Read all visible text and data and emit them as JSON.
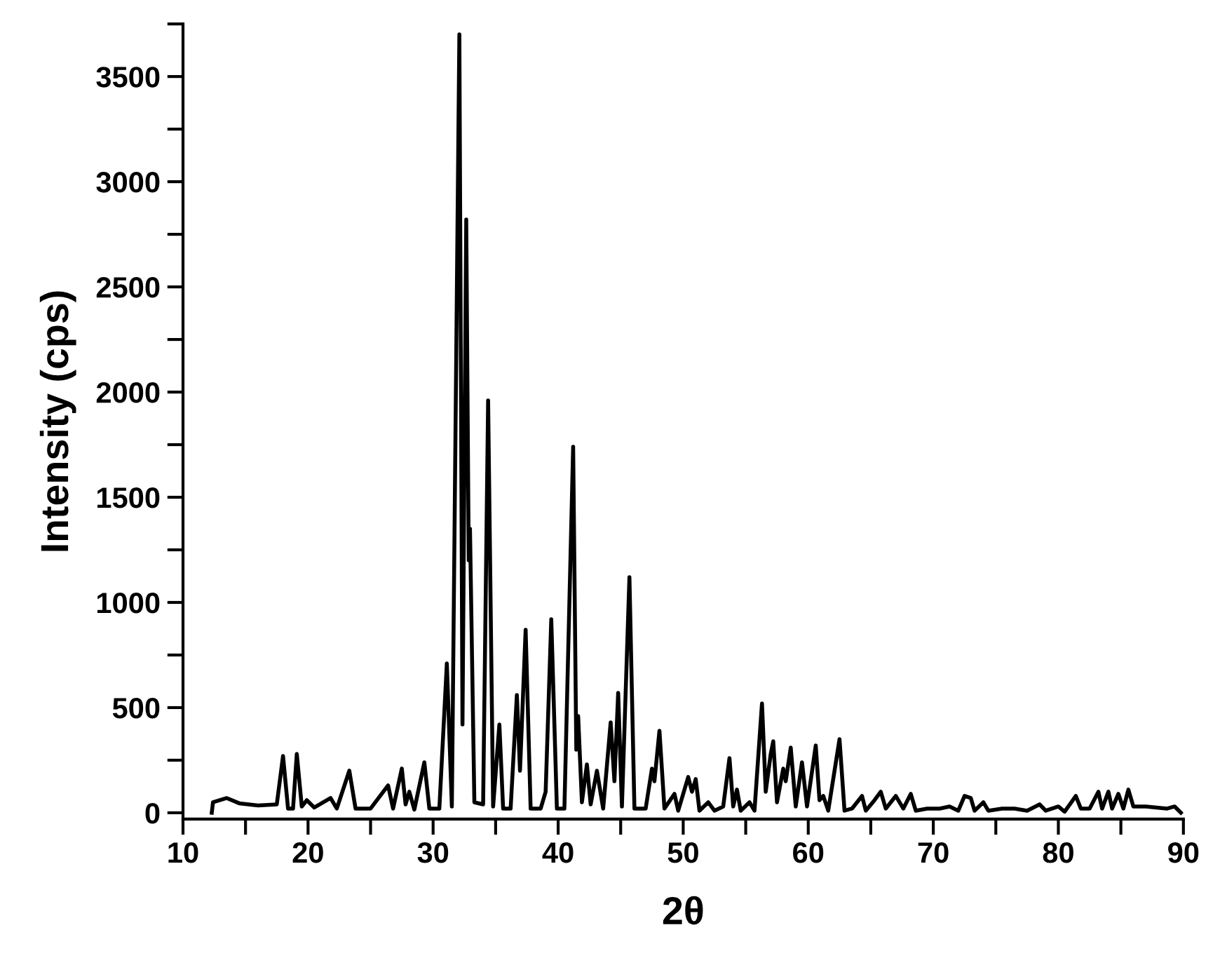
{
  "chart_data": {
    "type": "line",
    "xlabel": "2θ",
    "ylabel": "Intensity (cps)",
    "xlim": [
      10,
      90
    ],
    "ylim": [
      -30,
      3750
    ],
    "xticks": [
      10,
      {
        "value": 15,
        "label": null
      },
      20,
      {
        "value": 25,
        "label": null
      },
      30,
      {
        "value": 35,
        "label": null
      },
      40,
      {
        "value": 45,
        "label": null
      },
      50,
      {
        "value": 55,
        "label": null
      },
      60,
      {
        "value": 65,
        "label": null
      },
      70,
      {
        "value": 75,
        "label": null
      },
      80,
      {
        "value": 85,
        "label": null
      },
      90
    ],
    "yticks": [
      0,
      {
        "value": 250,
        "label": null
      },
      500,
      {
        "value": 750,
        "label": null
      },
      1000,
      {
        "value": 1250,
        "label": null
      },
      1500,
      {
        "value": 1750,
        "label": null
      },
      2000,
      {
        "value": 2250,
        "label": null
      },
      2500,
      {
        "value": 2750,
        "label": null
      },
      3000,
      {
        "value": 3250,
        "label": null
      },
      3500,
      {
        "value": 3750,
        "label": null
      }
    ],
    "grid": false,
    "legend": false,
    "marker": "none",
    "line_style": "solid",
    "x": [
      12.3,
      12.4,
      13.5,
      14.5,
      16,
      17.5,
      18.0,
      18.4,
      18.8,
      19.1,
      19.5,
      19.9,
      20.5,
      21.8,
      22.3,
      23.3,
      23.8,
      25,
      26.4,
      26.8,
      27.5,
      27.8,
      28.1,
      28.5,
      29.3,
      29.7,
      30.5,
      31.1,
      31.5,
      32.1,
      32.35,
      32.65,
      32.85,
      32.95,
      33.3,
      34.0,
      34.4,
      34.8,
      35.3,
      35.6,
      36.2,
      36.7,
      36.95,
      37.4,
      37.8,
      38.6,
      39.0,
      39.45,
      39.9,
      40.5,
      41.2,
      41.45,
      41.6,
      41.9,
      42.3,
      42.6,
      43.1,
      43.6,
      44.2,
      44.5,
      44.8,
      45.1,
      45.7,
      46.1,
      47.0,
      47.5,
      47.7,
      48.1,
      48.5,
      49.3,
      49.6,
      50.4,
      50.7,
      51.0,
      51.3,
      52.0,
      52.5,
      53.2,
      53.7,
      54.0,
      54.3,
      54.6,
      55.3,
      55.7,
      56.3,
      56.6,
      57.0,
      57.2,
      57.5,
      58.0,
      58.2,
      58.6,
      59.0,
      59.5,
      59.9,
      60.6,
      60.9,
      61.2,
      61.6,
      62.5,
      62.9,
      63.5,
      64.3,
      64.6,
      65.3,
      65.8,
      66.2,
      67.0,
      67.6,
      68.2,
      68.6,
      69.5,
      70.5,
      71.3,
      72.0,
      72.5,
      73.0,
      73.3,
      74.0,
      74.4,
      75.5,
      76.5,
      77.5,
      78.5,
      79,
      80,
      80.5,
      81.4,
      81.8,
      82.5,
      83.2,
      83.5,
      84.0,
      84.3,
      84.8,
      85.2,
      85.6,
      86.0,
      87,
      88.7,
      89.3,
      89.8
    ],
    "series": [
      {
        "color": "#000000",
        "values": [
          0,
          50,
          70,
          45,
          35,
          40,
          270,
          20,
          20,
          280,
          30,
          60,
          25,
          70,
          20,
          200,
          20,
          20,
          130,
          20,
          210,
          40,
          100,
          15,
          240,
          20,
          20,
          710,
          30,
          3700,
          420,
          2820,
          1200,
          1350,
          50,
          40,
          1960,
          30,
          420,
          20,
          20,
          560,
          200,
          870,
          20,
          20,
          100,
          920,
          20,
          20,
          1740,
          300,
          460,
          50,
          230,
          40,
          200,
          20,
          430,
          150,
          570,
          30,
          1120,
          20,
          20,
          210,
          150,
          390,
          20,
          90,
          10,
          170,
          100,
          160,
          10,
          50,
          10,
          30,
          260,
          30,
          110,
          10,
          50,
          10,
          520,
          100,
          280,
          340,
          50,
          210,
          150,
          310,
          30,
          240,
          30,
          320,
          60,
          80,
          10,
          350,
          10,
          20,
          80,
          10,
          60,
          100,
          20,
          80,
          20,
          90,
          10,
          20,
          20,
          30,
          10,
          80,
          70,
          10,
          50,
          10,
          20,
          20,
          10,
          40,
          10,
          30,
          5,
          80,
          20,
          20,
          100,
          20,
          100,
          20,
          90,
          20,
          110,
          30,
          30,
          20,
          30,
          0
        ]
      }
    ]
  }
}
